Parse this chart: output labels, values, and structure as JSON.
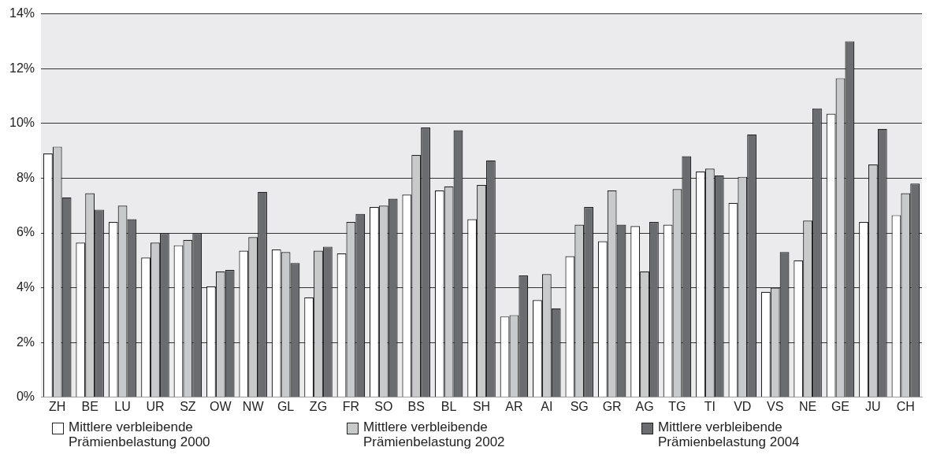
{
  "chart_data": {
    "type": "bar",
    "categories": [
      "ZH",
      "BE",
      "LU",
      "UR",
      "SZ",
      "OW",
      "NW",
      "GL",
      "ZG",
      "FR",
      "SO",
      "BS",
      "BL",
      "SH",
      "AR",
      "AI",
      "SG",
      "GR",
      "AG",
      "TG",
      "TI",
      "VD",
      "VS",
      "NE",
      "GE",
      "JU",
      "CH"
    ],
    "series": [
      {
        "name": "Mittlere verbleibende Prämienbelastung 2000",
        "color": "#ffffff",
        "values": [
          8.9,
          5.65,
          6.4,
          5.1,
          5.55,
          4.05,
          5.35,
          5.4,
          3.65,
          5.25,
          6.95,
          7.4,
          7.55,
          6.5,
          2.95,
          3.55,
          5.15,
          5.7,
          6.25,
          6.3,
          8.25,
          7.1,
          3.85,
          5.0,
          10.35,
          6.4,
          6.65
        ]
      },
      {
        "name": "Mittlere verbleibende Prämienbelastung 2002",
        "color": "#c8c9cb",
        "values": [
          9.15,
          7.45,
          7.0,
          5.65,
          5.75,
          4.6,
          5.85,
          5.3,
          5.35,
          6.4,
          7.0,
          8.85,
          7.7,
          7.75,
          3.0,
          4.5,
          6.3,
          7.55,
          4.6,
          7.6,
          8.35,
          8.05,
          4.0,
          6.45,
          11.65,
          8.5,
          7.45
        ]
      },
      {
        "name": "Mittlere verbleibende Prämienbelastung 2004",
        "color": "#6b6c70",
        "values": [
          7.3,
          6.85,
          6.5,
          6.0,
          6.0,
          4.65,
          7.5,
          4.9,
          5.5,
          6.7,
          7.25,
          9.85,
          9.75,
          8.65,
          4.45,
          3.25,
          6.95,
          6.3,
          6.4,
          8.8,
          8.1,
          9.6,
          5.3,
          10.55,
          13.0,
          9.8,
          7.8
        ]
      }
    ],
    "ylim": [
      0,
      14
    ],
    "yticks": [
      {
        "value": 0,
        "label": "0%"
      },
      {
        "value": 2,
        "label": "2%"
      },
      {
        "value": 4,
        "label": "4%"
      },
      {
        "value": 6,
        "label": "6%"
      },
      {
        "value": 8,
        "label": "8%"
      },
      {
        "value": 10,
        "label": "10%"
      },
      {
        "value": 12,
        "label": "12%"
      },
      {
        "value": 14,
        "label": "14%"
      }
    ],
    "grid": true,
    "legend": "bottom"
  }
}
